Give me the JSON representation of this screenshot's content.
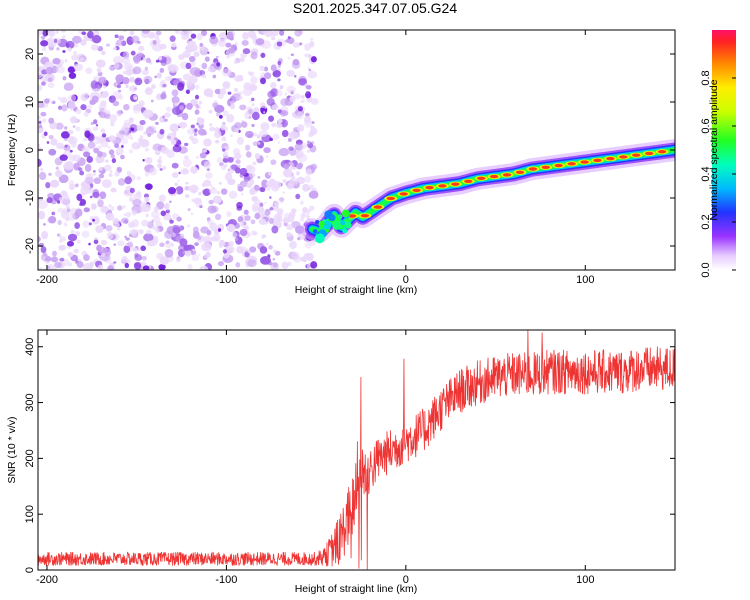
{
  "title": "S201.2025.347.07.05.G24",
  "chart_data": [
    {
      "type": "heatmap",
      "name": "spectrogram",
      "xlabel": "Height of straight line (km)",
      "ylabel": "Frequency (Hz)",
      "xlim": [
        -205,
        150
      ],
      "ylim": [
        -25,
        25
      ],
      "xticks": [
        -200,
        -100,
        0,
        100
      ],
      "yticks": [
        20,
        10,
        0,
        -10,
        -20
      ],
      "noise_region_x": [
        -205,
        -50
      ],
      "ridge": {
        "x": [
          -52,
          -48,
          -44,
          -40,
          -36,
          -32,
          -28,
          -24,
          -20,
          -16,
          -12,
          -8,
          -4,
          0,
          10,
          20,
          30,
          40,
          50,
          60,
          70,
          80,
          90,
          100,
          110,
          120,
          130,
          140,
          150
        ],
        "y": [
          -16.5,
          -17,
          -15.5,
          -13.5,
          -16,
          -14.5,
          -13,
          -14,
          -13,
          -12,
          -11,
          -10,
          -9.5,
          -9,
          -8,
          -7.5,
          -7,
          -6,
          -5.5,
          -5,
          -4,
          -3.5,
          -3,
          -2.5,
          -2,
          -1.5,
          -1,
          -0.5,
          0
        ]
      },
      "colorbar": {
        "label": "Normalized spectral amplitude",
        "range": [
          0,
          1
        ],
        "ticks": [
          0.0,
          0.2,
          0.4,
          0.6,
          0.8
        ],
        "tick_labels": [
          "0.0",
          "0.2",
          "0.4",
          "0.6",
          "0.8"
        ]
      }
    },
    {
      "type": "line",
      "name": "snr",
      "xlabel": "Height of straight line (km)",
      "ylabel": "SNR (10 * v/v)",
      "xlim": [
        -205,
        150
      ],
      "ylim": [
        0,
        430
      ],
      "xticks": [
        -200,
        -100,
        0,
        100
      ],
      "yticks": [
        0,
        100,
        200,
        300,
        400
      ],
      "color": "#ee3333",
      "envelope": {
        "x": [
          -205,
          -50,
          -45,
          -40,
          -35,
          -30,
          -25,
          -20,
          -15,
          -10,
          -5,
          0,
          10,
          20,
          30,
          40,
          50,
          60,
          70,
          80,
          90,
          100,
          110,
          120,
          130,
          140,
          150
        ],
        "mean": [
          20,
          20,
          25,
          40,
          70,
          110,
          170,
          180,
          200,
          210,
          220,
          230,
          250,
          290,
          320,
          335,
          345,
          350,
          350,
          355,
          355,
          355,
          355,
          355,
          360,
          360,
          360
        ],
        "amplitude": [
          12,
          12,
          18,
          35,
          50,
          60,
          55,
          45,
          40,
          40,
          40,
          40,
          40,
          40,
          40,
          40,
          40,
          40,
          40,
          40,
          40,
          40,
          40,
          40,
          40,
          40,
          40
        ]
      },
      "spikes": [
        {
          "x": -25,
          "y": 345
        },
        {
          "x": -27,
          "y": 230
        },
        {
          "x": -1,
          "y": 378
        },
        {
          "x": 68,
          "y": 430
        },
        {
          "x": 76,
          "y": 425
        }
      ]
    }
  ]
}
